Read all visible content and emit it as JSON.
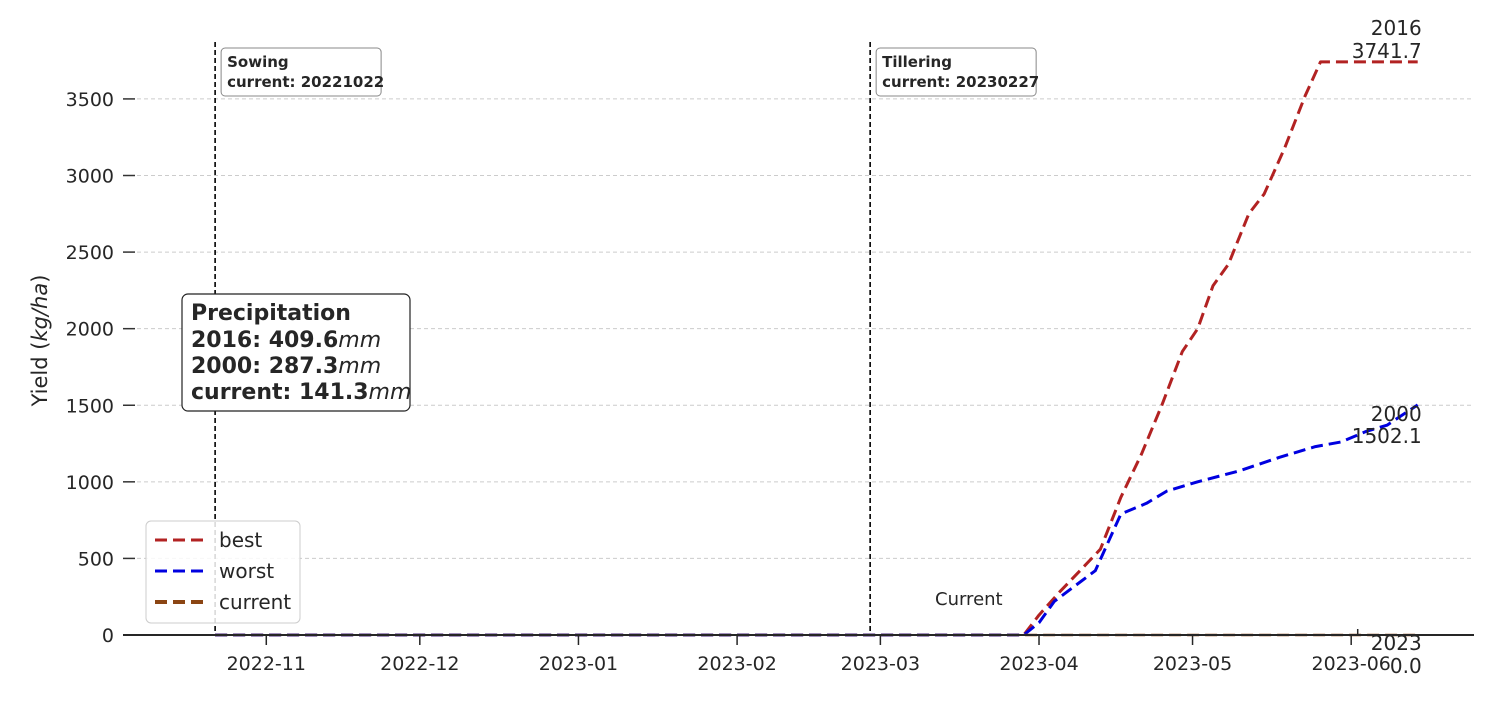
{
  "chart_data": {
    "type": "line",
    "ylabel": "Yield",
    "ylabel_unit": "kg/ha",
    "ylim": [
      0,
      3950
    ],
    "xlim": [
      "2022-10-04",
      "2023-06-25"
    ],
    "yticks": [
      "0",
      "500",
      "1000",
      "1500",
      "2000",
      "2500",
      "3000",
      "3500"
    ],
    "xticks": [
      {
        "date": "2022-11-01",
        "label": "2022-11"
      },
      {
        "date": "2022-12-01",
        "label": "2022-12"
      },
      {
        "date": "2023-01-01",
        "label": "2023-01"
      },
      {
        "date": "2023-02-01",
        "label": "2023-02"
      },
      {
        "date": "2023-03-01",
        "label": "2023-03"
      },
      {
        "date": "2023-04-01",
        "label": "2023-04"
      },
      {
        "date": "2023-05-01",
        "label": "2023-05"
      },
      {
        "date": "2023-06-01",
        "label": "2023-06"
      }
    ],
    "grid": "horizontal dashed",
    "legend_position": "lower-left",
    "series": [
      {
        "name": "best",
        "color": "#b22222",
        "end_label": "2016",
        "end_value": "3741.7",
        "points": [
          [
            "2022-10-22",
            0
          ],
          [
            "2023-03-29",
            0
          ],
          [
            "2023-04-01",
            130
          ],
          [
            "2023-04-05",
            280
          ],
          [
            "2023-04-09",
            420
          ],
          [
            "2023-04-13",
            560
          ],
          [
            "2023-04-17",
            900
          ],
          [
            "2023-04-21",
            1180
          ],
          [
            "2023-04-25",
            1500
          ],
          [
            "2023-04-29",
            1850
          ],
          [
            "2023-05-02",
            2000
          ],
          [
            "2023-05-05",
            2280
          ],
          [
            "2023-05-08",
            2420
          ],
          [
            "2023-05-12",
            2750
          ],
          [
            "2023-05-15",
            2880
          ],
          [
            "2023-05-19",
            3180
          ],
          [
            "2023-05-23",
            3520
          ],
          [
            "2023-05-26",
            3741.7
          ],
          [
            "2023-06-14",
            3741.7
          ]
        ]
      },
      {
        "name": "worst",
        "color": "#0000e0",
        "end_label": "2000",
        "end_value": "1502.1",
        "points": [
          [
            "2022-10-22",
            0
          ],
          [
            "2023-03-29",
            0
          ],
          [
            "2023-04-01",
            80
          ],
          [
            "2023-04-04",
            220
          ],
          [
            "2023-04-08",
            320
          ],
          [
            "2023-04-12",
            420
          ],
          [
            "2023-04-17",
            790
          ],
          [
            "2023-04-22",
            860
          ],
          [
            "2023-04-26",
            940
          ],
          [
            "2023-05-02",
            1000
          ],
          [
            "2023-05-10",
            1070
          ],
          [
            "2023-05-18",
            1160
          ],
          [
            "2023-05-25",
            1230
          ],
          [
            "2023-05-30",
            1260
          ],
          [
            "2023-06-04",
            1330
          ],
          [
            "2023-06-08",
            1370
          ],
          [
            "2023-06-14",
            1502.1
          ]
        ]
      },
      {
        "name": "current",
        "color": "#8b4513",
        "end_label": "2023",
        "end_value": "0.0",
        "points": [
          [
            "2022-10-22",
            0
          ],
          [
            "2023-06-14",
            0
          ]
        ]
      }
    ],
    "stages": [
      {
        "date": "2022-10-22",
        "name": "Sowing",
        "text": "current: 20221022"
      },
      {
        "date": "2023-02-27",
        "name": "Tillering",
        "text": "current: 20230227"
      }
    ],
    "precipitation": {
      "title": "Precipitation",
      "unit": "mm",
      "rows": [
        {
          "label": "2016:",
          "value": "409.6"
        },
        {
          "label": "2000:",
          "value": "287.3"
        },
        {
          "label": "current:",
          "value": "141.3"
        }
      ]
    },
    "current_marker": {
      "label": "Current"
    }
  }
}
